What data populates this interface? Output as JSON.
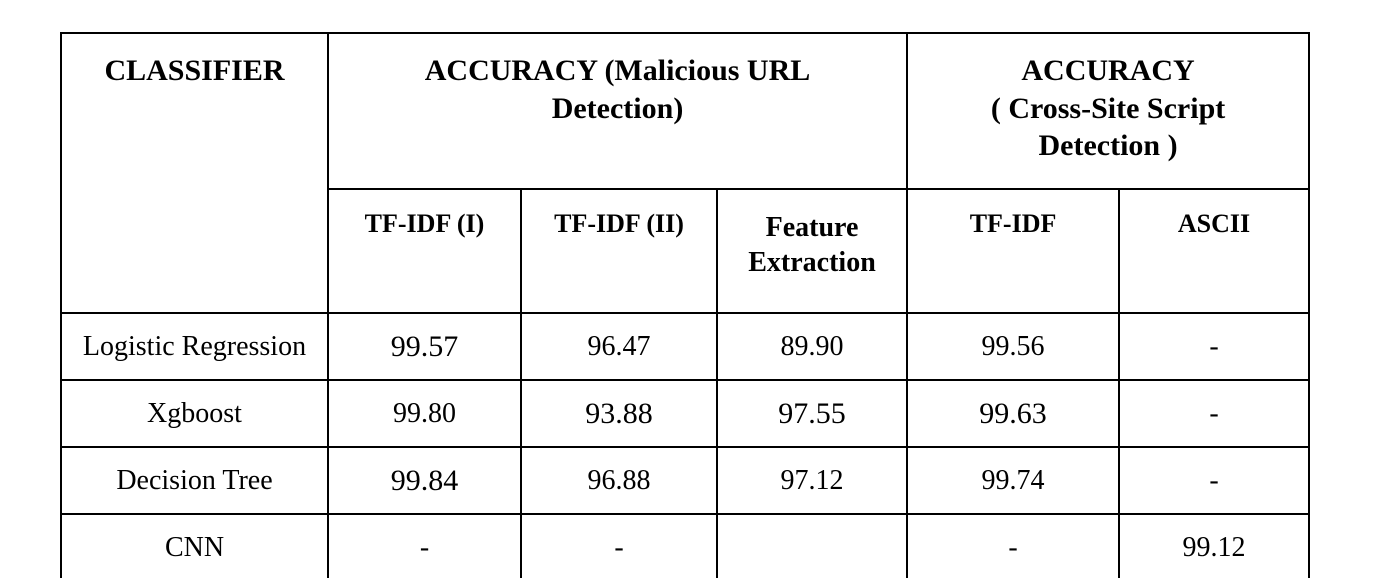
{
  "table": {
    "header_classifier": "CLASSIFIER",
    "header_group_url": "ACCURACY (Malicious URL\nDetection)",
    "header_group_xss": "ACCURACY\n( Cross-Site Script\nDetection )",
    "subheaders": [
      "TF-IDF (I)",
      "TF-IDF (II)",
      "Feature\nExtraction",
      "TF-IDF",
      "ASCII"
    ],
    "rows": [
      {
        "classifier": "Logistic Regression",
        "values": [
          "99.57",
          "96.47",
          "89.90",
          "99.56",
          "-"
        ]
      },
      {
        "classifier": "Xgboost",
        "values": [
          "99.80",
          "93.88",
          "97.55",
          "99.63",
          "-"
        ]
      },
      {
        "classifier": "Decision Tree",
        "values": [
          "99.84",
          "96.88",
          "97.12",
          "99.74",
          "-"
        ]
      },
      {
        "classifier": "CNN",
        "values": [
          "-",
          "-",
          "",
          "-",
          "99.12"
        ]
      }
    ]
  }
}
